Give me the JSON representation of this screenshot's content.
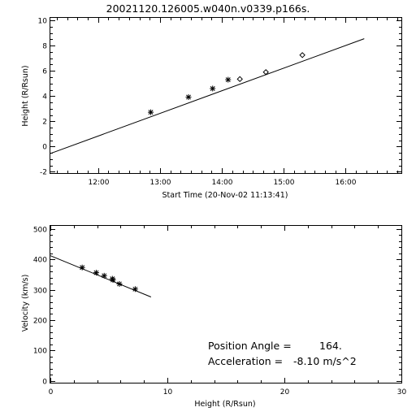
{
  "title": "20021120.126005.w040n.v0339.p166s.",
  "chart_data": [
    {
      "type": "scatter",
      "xlabel": "Start Time (20-Nov-02 11:13:41)",
      "ylabel": "Height (R/Rsun)",
      "x_tick_labels": [
        "12:00",
        "13:00",
        "14:00",
        "15:00",
        "16:00"
      ],
      "x_ticks_hours": [
        12,
        13,
        14,
        15,
        16
      ],
      "y_ticks": [
        -2,
        0,
        2,
        4,
        6,
        8,
        10
      ],
      "xlim_hours": [
        11.228,
        16.9
      ],
      "ylim": [
        -2.1,
        10.2
      ],
      "fit_line": {
        "x": [
          11.228,
          16.3
        ],
        "y": [
          -0.55,
          8.55
        ]
      },
      "series": [
        {
          "marker": "asterisk",
          "x": [
            12.85,
            13.46,
            13.85,
            14.1
          ],
          "y": [
            2.72,
            3.92,
            4.6,
            5.3
          ]
        },
        {
          "marker": "diamond",
          "x": [
            14.29,
            14.71,
            15.3
          ],
          "y": [
            5.35,
            5.9,
            7.25
          ]
        }
      ]
    },
    {
      "type": "scatter",
      "xlabel": "Height (R/Rsun)",
      "ylabel": "Velocity (km/s)",
      "x_ticks": [
        0,
        10,
        20,
        30
      ],
      "y_ticks": [
        0,
        100,
        200,
        300,
        400,
        500
      ],
      "xlim": [
        0,
        30
      ],
      "ylim": [
        -6,
        510
      ],
      "fit_line": {
        "x": [
          0,
          8.6
        ],
        "y": [
          412,
          276
        ]
      },
      "series": [
        {
          "marker": "asterisk",
          "x": [
            2.72,
            3.92,
            4.6,
            5.3,
            5.35,
            5.9,
            7.25
          ],
          "y": [
            373,
            356,
            346,
            336,
            332,
            319,
            302
          ]
        }
      ],
      "annotations": [
        {
          "label": "Position Angle =",
          "value": "164."
        },
        {
          "label": "Acceleration =",
          "value": "-8.10 m/s^2"
        }
      ]
    }
  ]
}
